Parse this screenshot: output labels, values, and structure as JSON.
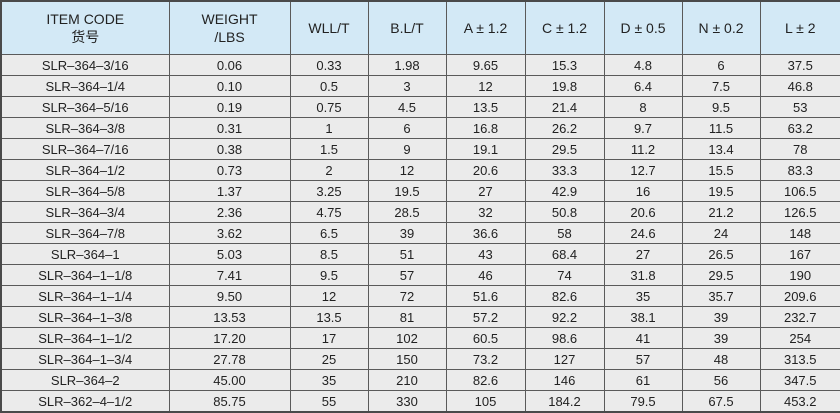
{
  "table": {
    "headers": [
      {
        "line1": "ITEM CODE",
        "line2": "货号"
      },
      {
        "line1": "WEIGHT",
        "line2": "/LBS"
      },
      {
        "line1": "WLL/T",
        "line2": ""
      },
      {
        "line1": "B.L/T",
        "line2": ""
      },
      {
        "line1": "A ± 1.2",
        "line2": ""
      },
      {
        "line1": "C ± 1.2",
        "line2": ""
      },
      {
        "line1": "D ± 0.5",
        "line2": ""
      },
      {
        "line1": "N ± 0.2",
        "line2": ""
      },
      {
        "line1": "L ± 2",
        "line2": ""
      }
    ],
    "rows": [
      [
        "SLR–364–3/16",
        "0.06",
        "0.33",
        "1.98",
        "9.65",
        "15.3",
        "4.8",
        "6",
        "37.5"
      ],
      [
        "SLR–364–1/4",
        "0.10",
        "0.5",
        "3",
        "12",
        "19.8",
        "6.4",
        "7.5",
        "46.8"
      ],
      [
        "SLR–364–5/16",
        "0.19",
        "0.75",
        "4.5",
        "13.5",
        "21.4",
        "8",
        "9.5",
        "53"
      ],
      [
        "SLR–364–3/8",
        "0.31",
        "1",
        "6",
        "16.8",
        "26.2",
        "9.7",
        "11.5",
        "63.2"
      ],
      [
        "SLR–364–7/16",
        "0.38",
        "1.5",
        "9",
        "19.1",
        "29.5",
        "11.2",
        "13.4",
        "78"
      ],
      [
        "SLR–364–1/2",
        "0.73",
        "2",
        "12",
        "20.6",
        "33.3",
        "12.7",
        "15.5",
        "83.3"
      ],
      [
        "SLR–364–5/8",
        "1.37",
        "3.25",
        "19.5",
        "27",
        "42.9",
        "16",
        "19.5",
        "106.5"
      ],
      [
        "SLR–364–3/4",
        "2.36",
        "4.75",
        "28.5",
        "32",
        "50.8",
        "20.6",
        "21.2",
        "126.5"
      ],
      [
        "SLR–364–7/8",
        "3.62",
        "6.5",
        "39",
        "36.6",
        "58",
        "24.6",
        "24",
        "148"
      ],
      [
        "SLR–364–1",
        "5.03",
        "8.5",
        "51",
        "43",
        "68.4",
        "27",
        "26.5",
        "167"
      ],
      [
        "SLR–364–1–1/8",
        "7.41",
        "9.5",
        "57",
        "46",
        "74",
        "31.8",
        "29.5",
        "190"
      ],
      [
        "SLR–364–1–1/4",
        "9.50",
        "12",
        "72",
        "51.6",
        "82.6",
        "35",
        "35.7",
        "209.6"
      ],
      [
        "SLR–364–1–3/8",
        "13.53",
        "13.5",
        "81",
        "57.2",
        "92.2",
        "38.1",
        "39",
        "232.7"
      ],
      [
        "SLR–364–1–1/2",
        "17.20",
        "17",
        "102",
        "60.5",
        "98.6",
        "41",
        "39",
        "254"
      ],
      [
        "SLR–364–1–3/4",
        "27.78",
        "25",
        "150",
        "73.2",
        "127",
        "57",
        "48",
        "313.5"
      ],
      [
        "SLR–364–2",
        "45.00",
        "35",
        "210",
        "82.6",
        "146",
        "61",
        "56",
        "347.5"
      ],
      [
        "SLR–362–4–1/2",
        "85.75",
        "55",
        "330",
        "105",
        "184.2",
        "79.5",
        "67.5",
        "453.2"
      ]
    ]
  },
  "colors": {
    "header_bg": "#d3e9f6",
    "row_bg": "#ebebeb",
    "border": "#5a5a5a"
  }
}
